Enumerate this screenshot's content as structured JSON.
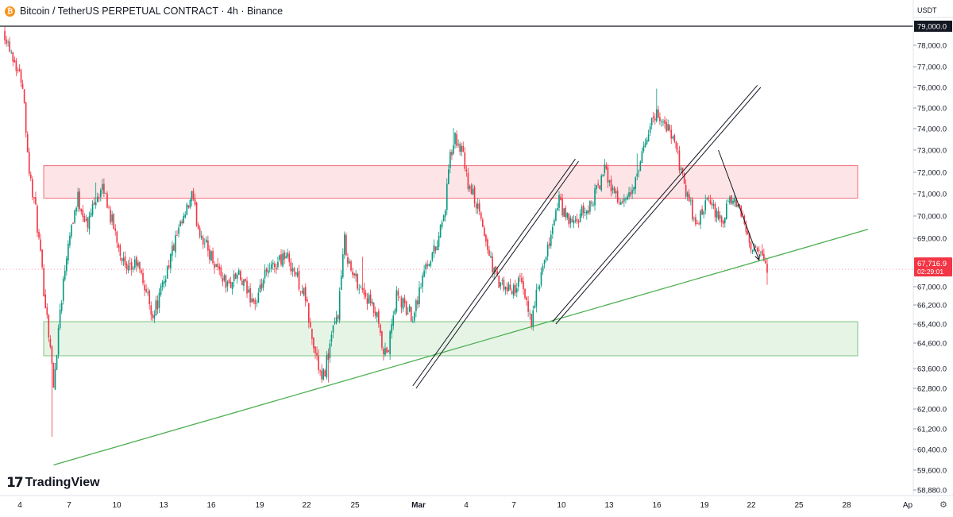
{
  "header": {
    "coin_icon": "bitcoin-icon",
    "coin_glyph": "₿",
    "title": "Bitcoin / TetherUS PERPETUAL CONTRACT · 4h · Binance"
  },
  "currency": "USDT",
  "branding": {
    "logo_icon": "tradingview-logo-icon",
    "logo_glyph": "17",
    "name": "TradingView"
  },
  "settings_icon": "gear-icon",
  "colors": {
    "up": "#089981",
    "down": "#f23645",
    "resistance_fill": "#f23645",
    "support_fill": "#4caf50",
    "trendline": "#4caf50",
    "channel": "#131722",
    "price_label": "#f23645",
    "grid_line": "#e0e3eb"
  },
  "chart_data": {
    "type": "candlestick",
    "interval": "4h",
    "x_ticks": [
      "4",
      "7",
      "10",
      "13",
      "16",
      "19",
      "22",
      "25",
      "Mar",
      "4",
      "7",
      "10",
      "13",
      "16",
      "19",
      "22",
      "25",
      "28",
      "Ap"
    ],
    "y_ticks": [
      "78,000.0",
      "77,000.0",
      "76,000.0",
      "75,000.0",
      "74,000.0",
      "73,000.0",
      "72,000.0",
      "71,000.0",
      "70,000.0",
      "69,000.0",
      "67,000.0",
      "66,200.0",
      "65,400.0",
      "64,600.0",
      "63,600.0",
      "62,800.0",
      "62,000.0",
      "61,200.0",
      "60,400.0",
      "59,600.0",
      "58,880.0"
    ],
    "highlighted_level": {
      "value": 79000,
      "label": "79,000.0"
    },
    "current_price": {
      "value": 67716.9,
      "label": "67,716.9",
      "countdown": "02:29:01"
    },
    "zones": [
      {
        "name": "resistance zone",
        "from": 70800,
        "to": 72300
      },
      {
        "name": "support zone",
        "from": 64100,
        "to": 65500
      }
    ],
    "price_path": [
      [
        0,
        78800
      ],
      [
        6,
        77500
      ],
      [
        12,
        76200
      ],
      [
        16,
        72000
      ],
      [
        20,
        70200
      ],
      [
        24,
        67500
      ],
      [
        29,
        64500
      ],
      [
        31,
        62800
      ],
      [
        35,
        66000
      ],
      [
        40,
        69000
      ],
      [
        46,
        70800
      ],
      [
        52,
        69500
      ],
      [
        56,
        70800
      ],
      [
        62,
        71200
      ],
      [
        66,
        70000
      ],
      [
        72,
        68500
      ],
      [
        76,
        67500
      ],
      [
        82,
        68000
      ],
      [
        88,
        66800
      ],
      [
        92,
        65800
      ],
      [
        96,
        66500
      ],
      [
        101,
        67800
      ],
      [
        106,
        68900
      ],
      [
        112,
        70000
      ],
      [
        116,
        70900
      ],
      [
        120,
        69500
      ],
      [
        126,
        68500
      ],
      [
        132,
        67800
      ],
      [
        138,
        67000
      ],
      [
        144,
        67500
      ],
      [
        150,
        66800
      ],
      [
        156,
        66200
      ],
      [
        160,
        67300
      ],
      [
        166,
        67800
      ],
      [
        172,
        68300
      ],
      [
        176,
        68100
      ],
      [
        180,
        67500
      ],
      [
        186,
        66500
      ],
      [
        190,
        64700
      ],
      [
        194,
        63700
      ],
      [
        196,
        63000
      ],
      [
        200,
        64200
      ],
      [
        206,
        65900
      ],
      [
        210,
        68900
      ],
      [
        214,
        67600
      ],
      [
        220,
        67000
      ],
      [
        226,
        66200
      ],
      [
        230,
        65600
      ],
      [
        234,
        64000
      ],
      [
        237,
        64400
      ],
      [
        242,
        66600
      ],
      [
        248,
        66000
      ],
      [
        252,
        65800
      ],
      [
        256,
        66800
      ],
      [
        260,
        67900
      ],
      [
        266,
        68600
      ],
      [
        272,
        70400
      ],
      [
        275,
        72700
      ],
      [
        278,
        73500
      ],
      [
        282,
        73000
      ],
      [
        286,
        71400
      ],
      [
        290,
        70800
      ],
      [
        295,
        69500
      ],
      [
        298,
        68600
      ],
      [
        302,
        67600
      ],
      [
        306,
        67000
      ],
      [
        312,
        66800
      ],
      [
        318,
        67200
      ],
      [
        322,
        66200
      ],
      [
        325,
        65600
      ],
      [
        330,
        67200
      ],
      [
        334,
        68100
      ],
      [
        338,
        69600
      ],
      [
        342,
        70700
      ],
      [
        346,
        69900
      ],
      [
        352,
        69600
      ],
      [
        356,
        70100
      ],
      [
        360,
        70300
      ],
      [
        366,
        71300
      ],
      [
        370,
        72100
      ],
      [
        374,
        71400
      ],
      [
        378,
        70800
      ],
      [
        382,
        70500
      ],
      [
        386,
        71000
      ],
      [
        390,
        71700
      ],
      [
        394,
        73000
      ],
      [
        398,
        74300
      ],
      [
        402,
        74700
      ],
      [
        406,
        74400
      ],
      [
        410,
        73800
      ],
      [
        414,
        73100
      ],
      [
        418,
        71700
      ],
      [
        422,
        70700
      ],
      [
        426,
        69500
      ],
      [
        430,
        70200
      ],
      [
        434,
        70600
      ],
      [
        438,
        70200
      ],
      [
        442,
        69600
      ],
      [
        446,
        70500
      ],
      [
        450,
        70700
      ],
      [
        454,
        70000
      ],
      [
        458,
        69200
      ],
      [
        462,
        68500
      ],
      [
        466,
        68300
      ],
      [
        470,
        67717
      ]
    ],
    "annotations": [
      {
        "type": "ascending trendline",
        "from": [
          31,
          59800
        ],
        "to": [
          532,
          69400
        ]
      },
      {
        "type": "channel",
        "lines": [
          {
            "from": [
              252,
              62900
            ],
            "to": [
              352,
              72600
            ]
          },
          {
            "from": [
              254,
              62800
            ],
            "to": [
              354,
              72500
            ]
          }
        ]
      },
      {
        "type": "channel",
        "lines": [
          {
            "from": [
              338,
              65500
            ],
            "to": [
              464,
              76100
            ]
          },
          {
            "from": [
              340,
              65400
            ],
            "to": [
              466,
              76000
            ]
          }
        ]
      },
      {
        "type": "arrow",
        "from": [
          440,
          73000
        ],
        "to": [
          465,
          68100
        ]
      }
    ]
  }
}
